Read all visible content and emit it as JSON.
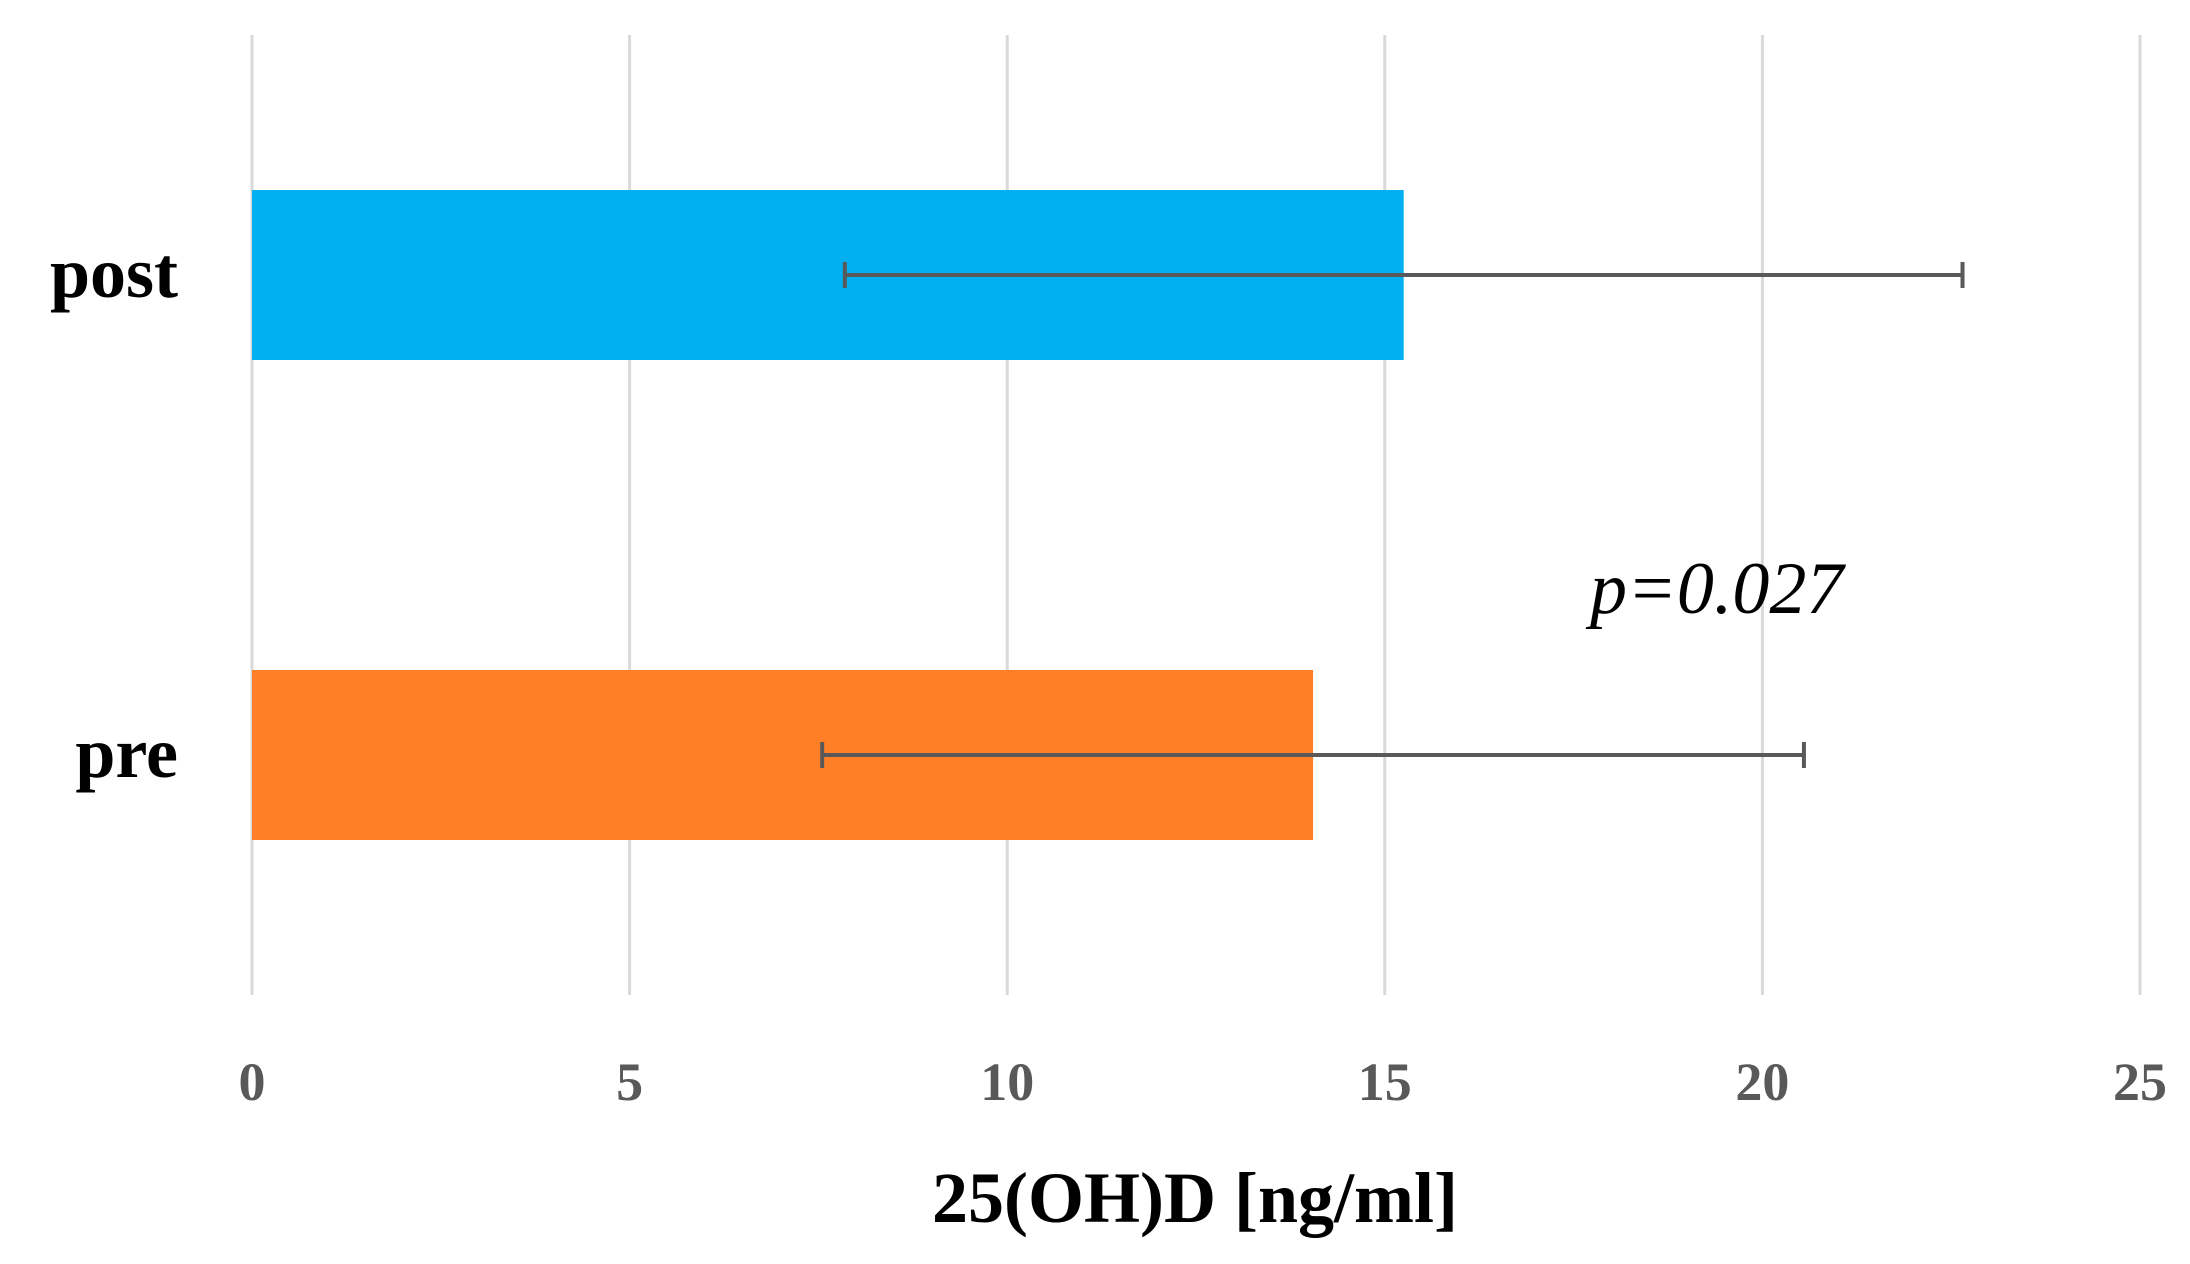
{
  "chart_data": {
    "type": "bar",
    "orientation": "horizontal",
    "categories": [
      "post",
      "pre"
    ],
    "values": [
      15.25,
      14.05
    ],
    "error_low": [
      7.85,
      7.55
    ],
    "error_high": [
      22.65,
      20.55
    ],
    "bar_colors": [
      "#00B0F0",
      "#FF7F27"
    ],
    "xlabel": "25(OH)D [ng/ml]",
    "ylabel": "",
    "xlim": [
      0,
      25
    ],
    "x_ticks": [
      "0",
      "5",
      "10",
      "15",
      "20",
      "25"
    ],
    "grid": "vertical",
    "annotation": "p=0.027",
    "colors": {
      "grid": "#D9D9D9",
      "error_bar": "#595959",
      "tick_label": "#595959"
    }
  }
}
